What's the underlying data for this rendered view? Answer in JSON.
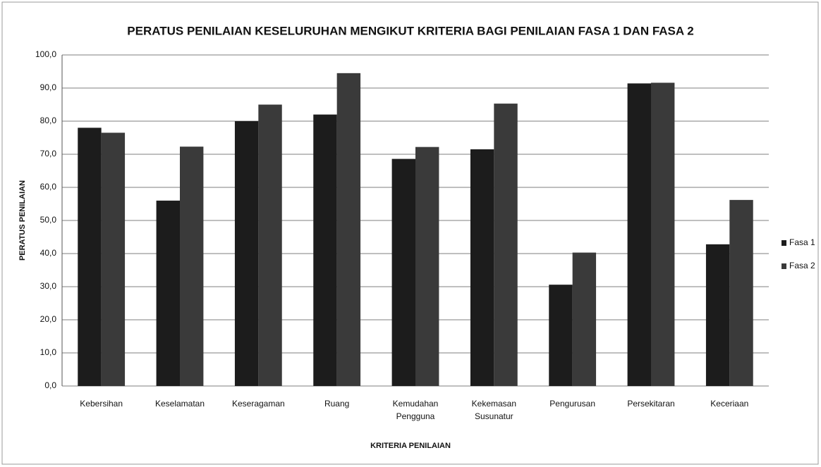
{
  "chart_data": {
    "type": "bar",
    "title": "PERATUS PENILAIAN KESELURUHAN MENGIKUT KRITERIA BAGI PENILAIAN FASA 1 DAN FASA 2",
    "x_label": "KRITERIA PENILAIAN",
    "y_label": "PERATUS PENILAIAN",
    "categories": [
      "Kebersihan",
      "Keselamatan",
      "Keseragaman",
      "Ruang",
      "Kemudahan Pengguna",
      "Kekemasan Susunatur",
      "Pengurusan",
      "Persekitaran",
      "Keceriaan"
    ],
    "series": [
      {
        "name": "Fasa 1",
        "color": "#1c1c1c",
        "values": [
          78.0,
          56.0,
          80.0,
          82.0,
          68.6,
          71.5,
          30.6,
          91.4,
          42.8
        ]
      },
      {
        "name": "Fasa 2",
        "color": "#3a3a3a",
        "values": [
          76.5,
          72.3,
          85.0,
          94.5,
          72.2,
          85.3,
          40.3,
          91.6,
          56.2
        ]
      }
    ],
    "ylim": [
      0,
      100
    ],
    "yticks": [
      {
        "value": 0,
        "label": "0,0"
      },
      {
        "value": 10,
        "label": "10,0"
      },
      {
        "value": 20,
        "label": "20,0"
      },
      {
        "value": 30,
        "label": "30,0"
      },
      {
        "value": 40,
        "label": "40,0"
      },
      {
        "value": 50,
        "label": "50,0"
      },
      {
        "value": 60,
        "label": "60,0"
      },
      {
        "value": 70,
        "label": "70,0"
      },
      {
        "value": 80,
        "label": "80,0"
      },
      {
        "value": 90,
        "label": "90,0"
      },
      {
        "value": 100,
        "label": "100,0"
      }
    ],
    "grid": true,
    "legend": "right"
  }
}
